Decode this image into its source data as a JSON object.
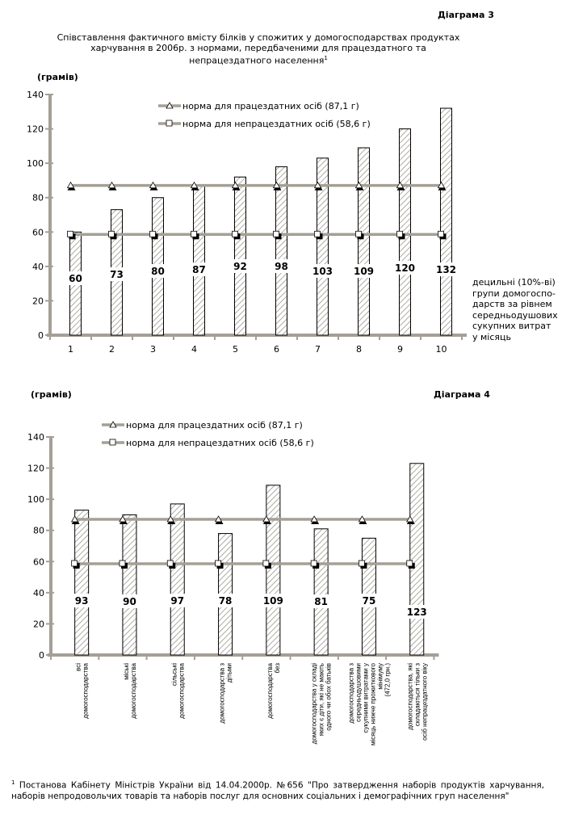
{
  "diagram3_label": "Діаграма 3",
  "diagram4_label": "Діаграма 4",
  "title": "Співставлення фактичного вмісту білків у спожитих у домогосподарствах продуктах харчування в 2006р. з нормами, передбаченими для працездатного та непрацездатного населення",
  "title_footnote_mark": "1",
  "footnote_mark": "1",
  "footnote": "Постанова Кабінету Міністрів України від 14.04.2000р. №656 \"Про затвердження наборів продуктів харчування, наборів непродовольчих товарів та наборів послуг для основних соціальних і демографічних груп населення\"",
  "colors": {
    "axis": "#a59f95",
    "hatch": "#9b958b",
    "bar_border": "#000000"
  },
  "chart_data": [
    {
      "type": "bar",
      "ylabel": "(грамів)",
      "xlabel": "децильні (10%-ві) групи домогосподарств за рівнем середньодушових сукупних витрат у місяць",
      "xlabel_lines": [
        "децильні (10%-ві)",
        "групи домогоспо-",
        "дарств за рівнем",
        "середньодушових",
        "сукупних витрат",
        "у місяць"
      ],
      "ylim": [
        0,
        140
      ],
      "yticks": [
        0,
        20,
        40,
        60,
        80,
        100,
        120,
        140
      ],
      "categories": [
        "1",
        "2",
        "3",
        "4",
        "5",
        "6",
        "7",
        "8",
        "9",
        "10"
      ],
      "values": [
        60,
        73,
        80,
        87,
        92,
        98,
        103,
        109,
        120,
        132
      ],
      "lines": [
        {
          "name": "норма для працездатних осіб (87,1 г)",
          "value": 87.1,
          "marker": "triangle"
        },
        {
          "name": "норма для непрацездатних осіб (58,6 г)",
          "value": 58.6,
          "marker": "square"
        }
      ],
      "legend": "top-right"
    },
    {
      "type": "bar",
      "ylabel": "(грамів)",
      "ylim": [
        0,
        140
      ],
      "yticks": [
        0,
        20,
        40,
        60,
        80,
        100,
        120,
        140
      ],
      "categories": [
        [
          "всі",
          "домогосподарства"
        ],
        [
          "міські",
          "домогосподарства"
        ],
        [
          "сільські",
          "домогосподарства"
        ],
        [
          "домогосподарства з",
          "дітьми"
        ],
        [
          "домогосподарства",
          "без"
        ],
        [
          "домогосподарства у складі",
          "яких є діти, які не мають",
          "одного чи обох батьків"
        ],
        [
          "домогосподарства з",
          "середньодушовими",
          "сукупними витратами у",
          "місяць нижче прожиткового",
          "мінімуму",
          "(472,0 грн.)"
        ],
        [
          "домогосподарства, які",
          "складаються тільки з",
          "осіб непрацездатного віку"
        ]
      ],
      "values": [
        93,
        90,
        97,
        78,
        109,
        81,
        75,
        123
      ],
      "lines": [
        {
          "name": "норма для працездатних осіб (87,1 г)",
          "value": 87.1,
          "marker": "triangle"
        },
        {
          "name": "норма для непрацездатних осіб (58,6 г)",
          "value": 58.6,
          "marker": "square"
        }
      ],
      "legend": "top"
    }
  ]
}
